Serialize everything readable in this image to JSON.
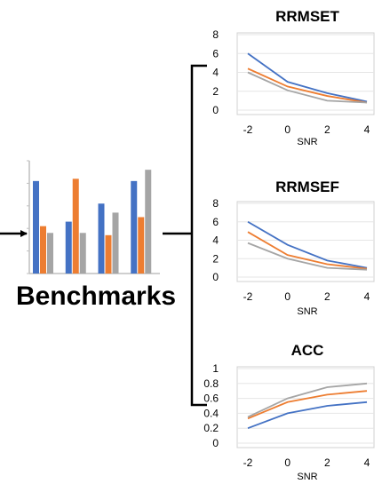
{
  "benchmarks_label": "Benchmarks",
  "colors": {
    "blue": "#4472C4",
    "orange": "#ED7D31",
    "gray": "#A5A5A5",
    "line": "#000000"
  },
  "icon": {
    "name": "bar-chart-icon",
    "groups": [
      [
        0.82,
        0.42,
        0.36
      ],
      [
        0.46,
        0.84,
        0.36
      ],
      [
        0.62,
        0.34,
        0.54
      ],
      [
        0.82,
        0.5,
        0.92
      ]
    ]
  },
  "chart_data": [
    {
      "type": "line",
      "title": "RRMSET",
      "xlabel": "SNR",
      "ylabel": "",
      "x": [
        -2,
        0,
        2,
        4
      ],
      "xticks": [
        "-2",
        "0",
        "2",
        "4"
      ],
      "ylim": [
        0,
        8
      ],
      "yticks": [
        "0",
        "2",
        "4",
        "6",
        "8"
      ],
      "series": [
        {
          "color": "#4472C4",
          "values": [
            6.0,
            3.0,
            1.8,
            0.9
          ]
        },
        {
          "color": "#ED7D31",
          "values": [
            4.4,
            2.5,
            1.5,
            0.8
          ]
        },
        {
          "color": "#A5A5A5",
          "values": [
            4.0,
            2.1,
            1.0,
            0.8
          ]
        }
      ]
    },
    {
      "type": "line",
      "title": "RRMSEF",
      "xlabel": "SNR",
      "ylabel": "",
      "x": [
        -2,
        0,
        2,
        4
      ],
      "xticks": [
        "-2",
        "0",
        "2",
        "4"
      ],
      "ylim": [
        0,
        8
      ],
      "yticks": [
        "0",
        "2",
        "4",
        "6",
        "8"
      ],
      "series": [
        {
          "color": "#4472C4",
          "values": [
            6.0,
            3.5,
            1.8,
            1.0
          ]
        },
        {
          "color": "#ED7D31",
          "values": [
            4.9,
            2.4,
            1.4,
            0.9
          ]
        },
        {
          "color": "#A5A5A5",
          "values": [
            3.7,
            2.0,
            1.0,
            0.8
          ]
        }
      ]
    },
    {
      "type": "line",
      "title": "ACC",
      "xlabel": "SNR",
      "ylabel": "",
      "x": [
        -2,
        0,
        2,
        4
      ],
      "xticks": [
        "-2",
        "0",
        "2",
        "4"
      ],
      "ylim": [
        0,
        1
      ],
      "yticks": [
        "0",
        "0.2",
        "0.4",
        "0.6",
        "0.8",
        "1"
      ],
      "series": [
        {
          "color": "#4472C4",
          "values": [
            0.2,
            0.4,
            0.5,
            0.55
          ]
        },
        {
          "color": "#ED7D31",
          "values": [
            0.33,
            0.55,
            0.65,
            0.7
          ]
        },
        {
          "color": "#A5A5A5",
          "values": [
            0.35,
            0.6,
            0.75,
            0.8
          ]
        }
      ]
    }
  ]
}
